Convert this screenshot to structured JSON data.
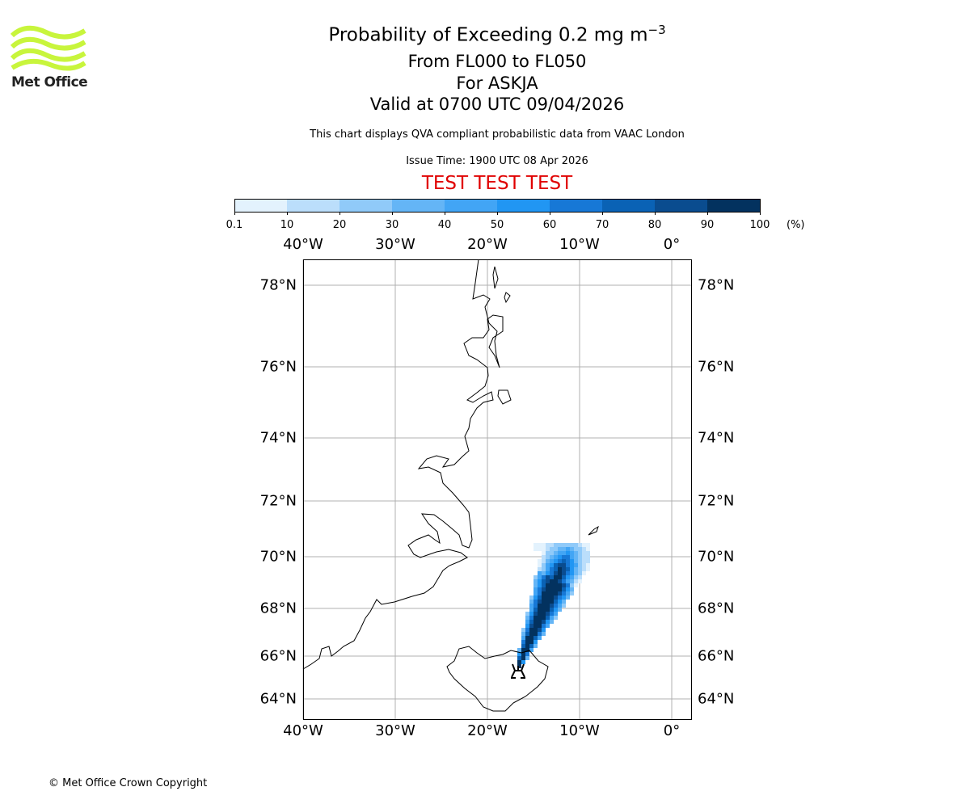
{
  "logo": {
    "text": "Met Office",
    "color": "#c8f53c"
  },
  "title": {
    "line1_prefix": "Probability of Exceeding 0.2 mg m",
    "line1_exponent": "−3",
    "line2": "From FL000 to FL050",
    "line3": "For ASKJA",
    "line4": "Valid at 0700 UTC 09/04/2026"
  },
  "subtitle": "This chart displays QVA compliant probabilistic data from VAAC London",
  "issue_time": "Issue Time: 1900 UTC 08 Apr 2026",
  "test_banner": "TEST TEST TEST",
  "colorbar": {
    "ticks": [
      "0.1",
      "10",
      "20",
      "30",
      "40",
      "50",
      "60",
      "70",
      "80",
      "90",
      "100"
    ],
    "unit": "(%)",
    "colors": [
      "#e3f2fd",
      "#bbdefb",
      "#90caf9",
      "#64b5f6",
      "#42a5f5",
      "#2196f3",
      "#1778d6",
      "#0a62b5",
      "#0a4c8f",
      "#03325f"
    ]
  },
  "map": {
    "lon_labels": [
      "40°W",
      "30°W",
      "20°W",
      "10°W",
      "0°"
    ],
    "lon_values": [
      -40,
      -30,
      -20,
      -10,
      0
    ],
    "lat_labels": [
      "78°N",
      "76°N",
      "74°N",
      "72°N",
      "70°N",
      "68°N",
      "66°N",
      "64°N"
    ],
    "lat_values": [
      78,
      76,
      74,
      72,
      70,
      68,
      66,
      64
    ],
    "volcano": {
      "name": "ASKJA",
      "lon": -16.75,
      "lat": 65.03
    }
  },
  "copyright": "© Met Office Crown Copyright"
}
